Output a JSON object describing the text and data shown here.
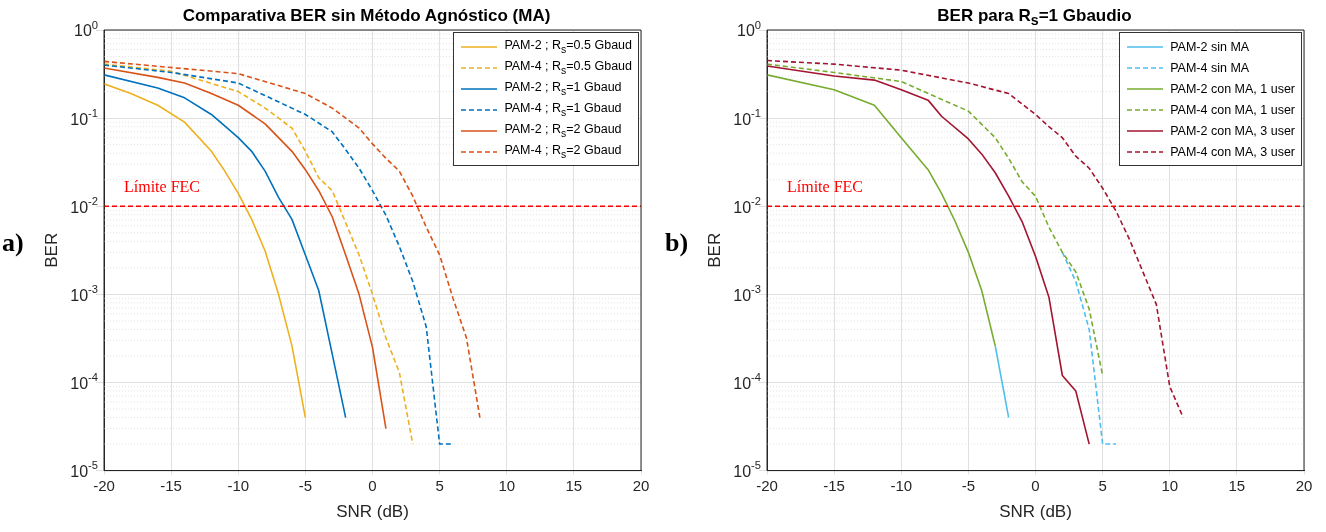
{
  "chart_data": [
    {
      "type": "line",
      "title": "Comparativa BER sin Método Agnóstico (MA)",
      "xlabel": "SNR (dB)",
      "ylabel": "BER",
      "log": "y",
      "grid": true,
      "legend": "top right",
      "marker": "none",
      "xlim": [
        -20,
        20
      ],
      "xticks": [
        -20,
        -15,
        -10,
        -5,
        0,
        5,
        10,
        15,
        20
      ],
      "ylim": [
        1e-05,
        1
      ],
      "yticks": [
        {
          "value": 1,
          "label": "10$^{0}$"
        },
        {
          "value": 0.1,
          "label": "10$^{-1}$"
        },
        {
          "value": 0.01,
          "label": "10$^{-2}$"
        },
        {
          "value": 0.001,
          "label": "10$^{-3}$"
        },
        {
          "value": 0.0001,
          "label": "10$^{-4}$"
        },
        {
          "value": 1e-05,
          "label": "10$^{-5}$"
        }
      ],
      "ref_lines": [
        {
          "axis": "y",
          "value": 0.01,
          "label": "Límite FEC",
          "color": "#ff0000",
          "line_style": "dashed"
        }
      ],
      "annotations": [
        "a)"
      ],
      "series": [
        {
          "name": "PAM-2 ; R$_{s}$=0.5 Gbaud",
          "color": "#edb120",
          "line_style": "solid",
          "x": [
            -20,
            -18,
            -16,
            -14,
            -12,
            -11,
            -10,
            -9,
            -8,
            -7,
            -6,
            -5
          ],
          "values": [
            0.245,
            0.19,
            0.14,
            0.09,
            0.042,
            0.025,
            0.014,
            0.0071,
            0.0031,
            0.001,
            0.00026,
            4e-05
          ]
        },
        {
          "name": "PAM-4 ; R$_{s}$=0.5 Gbaud",
          "color": "#edb120",
          "line_style": "dashed",
          "x": [
            -20,
            -15,
            -10,
            -8,
            -6,
            -5,
            -4,
            -3,
            -2,
            -1,
            0,
            1,
            2,
            3
          ],
          "values": [
            0.41,
            0.34,
            0.2,
            0.13,
            0.077,
            0.042,
            0.021,
            0.015,
            0.0065,
            0.0028,
            0.001,
            0.00032,
            0.00013,
            2e-05
          ]
        },
        {
          "name": "PAM-2 ; R$_{s}$=1 Gbaud",
          "color": "#0072bd",
          "line_style": "solid",
          "x": [
            -20,
            -16,
            -14,
            -12,
            -10,
            -9,
            -8,
            -7,
            -6,
            -5,
            -4,
            -3,
            -2
          ],
          "values": [
            0.31,
            0.22,
            0.17,
            0.11,
            0.06,
            0.042,
            0.025,
            0.0126,
            0.0071,
            0.0028,
            0.0011,
            0.00021,
            4e-05
          ]
        },
        {
          "name": "PAM-4 ; R$_{s}$=1 Gbaud",
          "color": "#0072bd",
          "line_style": "dashed",
          "x": [
            -20,
            -15,
            -10,
            -5,
            -3,
            -2,
            -1,
            0,
            1,
            2,
            3,
            4,
            5,
            6
          ],
          "values": [
            0.4,
            0.33,
            0.25,
            0.11,
            0.07,
            0.044,
            0.027,
            0.015,
            0.0079,
            0.0035,
            0.0014,
            0.00043,
            2e-05,
            2e-05
          ]
        },
        {
          "name": "PAM-2 ; R$_{s}$=2 Gbaud",
          "color": "#d95319",
          "line_style": "solid",
          "x": [
            -20,
            -16,
            -14,
            -12,
            -10,
            -9,
            -8,
            -7,
            -6,
            -5,
            -4,
            -3,
            -2,
            -1,
            0,
            1
          ],
          "values": [
            0.37,
            0.29,
            0.25,
            0.19,
            0.14,
            0.11,
            0.086,
            0.06,
            0.042,
            0.026,
            0.015,
            0.0076,
            0.0028,
            0.001,
            0.00025,
            3e-05
          ]
        },
        {
          "name": "PAM-4 ; R$_{s}$=2 Gbaud",
          "color": "#d95319",
          "line_style": "dashed",
          "x": [
            -20,
            -10,
            -5,
            -3,
            -2,
            -1,
            0,
            1,
            2,
            3,
            4,
            5,
            6,
            7,
            8
          ],
          "values": [
            0.44,
            0.32,
            0.19,
            0.13,
            0.1,
            0.077,
            0.051,
            0.035,
            0.025,
            0.013,
            0.0058,
            0.0028,
            0.0009,
            0.00032,
            4e-05
          ]
        }
      ]
    },
    {
      "type": "line",
      "title": "BER para R$_{s}$=1 Gbaudio",
      "xlabel": "SNR (dB)",
      "ylabel": "BER",
      "log": "y",
      "grid": true,
      "legend": "top right",
      "marker": "none",
      "xlim": [
        -20,
        20
      ],
      "xticks": [
        -20,
        -15,
        -10,
        -5,
        0,
        5,
        10,
        15,
        20
      ],
      "ylim": [
        1e-05,
        1
      ],
      "yticks": [
        {
          "value": 1,
          "label": "10$^{0}$"
        },
        {
          "value": 0.1,
          "label": "10$^{-1}$"
        },
        {
          "value": 0.01,
          "label": "10$^{-2}$"
        },
        {
          "value": 0.001,
          "label": "10$^{-3}$"
        },
        {
          "value": 0.0001,
          "label": "10$^{-4}$"
        },
        {
          "value": 1e-05,
          "label": "10$^{-5}$"
        }
      ],
      "ref_lines": [
        {
          "axis": "y",
          "value": 0.01,
          "label": "Límite FEC",
          "color": "#ff0000",
          "line_style": "dashed"
        }
      ],
      "annotations": [
        "b)"
      ],
      "series": [
        {
          "name": "PAM-2 sin MA",
          "color": "#4dbeee",
          "line_style": "solid",
          "x": [
            -3,
            -2
          ],
          "values": [
            0.00026,
            4e-05
          ]
        },
        {
          "name": "PAM-4 sin MA",
          "color": "#4dbeee",
          "line_style": "dashed",
          "x": [
            2,
            3,
            4,
            5,
            6
          ],
          "values": [
            0.003,
            0.0014,
            0.0004,
            2e-05,
            2e-05
          ]
        },
        {
          "name": "PAM-2 con MA, 1 user",
          "color": "#77ac30",
          "line_style": "solid",
          "x": [
            -20,
            -15,
            -12,
            -10,
            -8,
            -7,
            -6,
            -5,
            -4,
            -3
          ],
          "values": [
            0.31,
            0.21,
            0.14,
            0.06,
            0.026,
            0.014,
            0.0068,
            0.003,
            0.0011,
            0.00026
          ]
        },
        {
          "name": "PAM-4 con MA, 1 user",
          "color": "#77ac30",
          "line_style": "dashed",
          "x": [
            -20,
            -15,
            -10,
            -5,
            -3,
            -2,
            -1,
            0,
            1,
            2,
            3,
            4,
            5
          ],
          "values": [
            0.41,
            0.33,
            0.26,
            0.12,
            0.06,
            0.035,
            0.019,
            0.013,
            0.0058,
            0.003,
            0.0018,
            0.00068,
            0.00012
          ]
        },
        {
          "name": "PAM-2 con MA, 3 user",
          "color": "#a2142f",
          "line_style": "solid",
          "x": [
            -20,
            -15,
            -12,
            -10,
            -8,
            -7,
            -5,
            -4,
            -3,
            -2,
            -1,
            0,
            1,
            2,
            3,
            4
          ],
          "values": [
            0.39,
            0.3,
            0.27,
            0.21,
            0.16,
            0.105,
            0.058,
            0.039,
            0.024,
            0.013,
            0.0067,
            0.0027,
            0.00093,
            0.00012,
            8e-05,
            2e-05
          ]
        },
        {
          "name": "PAM-4 con MA, 3 user",
          "color": "#a2142f",
          "line_style": "dashed",
          "x": [
            -20,
            -15,
            -10,
            -5,
            -2,
            0,
            1,
            2,
            3,
            4,
            5,
            6,
            7,
            8,
            9,
            10,
            11
          ],
          "values": [
            0.45,
            0.41,
            0.35,
            0.25,
            0.19,
            0.11,
            0.08,
            0.06,
            0.037,
            0.027,
            0.016,
            0.0088,
            0.0042,
            0.0018,
            0.00077,
            9e-05,
            4e-05
          ]
        }
      ]
    }
  ]
}
